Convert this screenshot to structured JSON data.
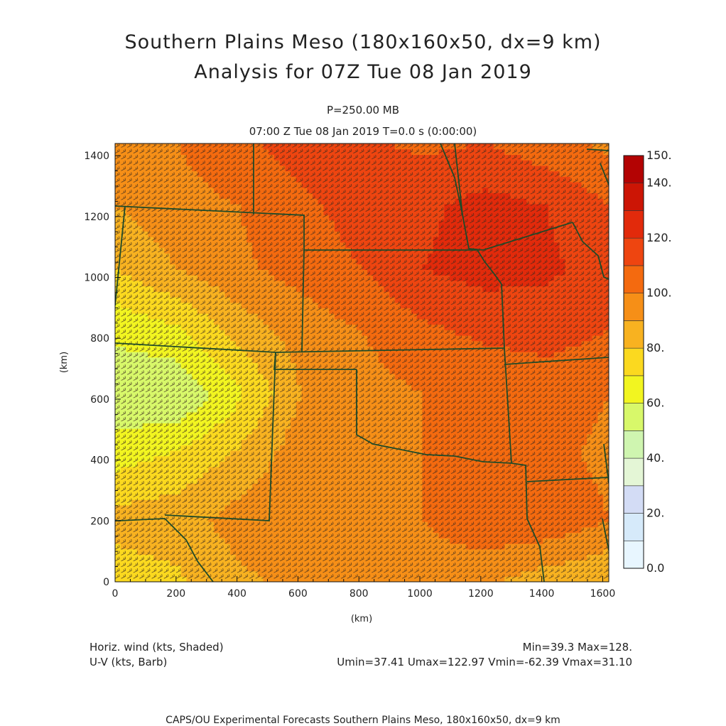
{
  "header": {
    "title": "Southern Plains Meso (180x160x50, dx=9 km)",
    "subtitle": "Analysis for 07Z Tue 08 Jan 2019",
    "level": "P=250.00 MB",
    "time": "07:00 Z Tue 08 Jan 2019    T=0.0 s (0:00:00)"
  },
  "footer": {
    "field1": "Horiz. wind (kts, Shaded)",
    "field2": "U-V (kts, Barb)",
    "minmax": "Min=39.3 Max=128.",
    "uvstats": "Umin=37.41 Umax=122.97 Vmin=-62.39 Vmax=31.10",
    "credit": "CAPS/OU Experimental Forecasts  Southern Plains Meso, 180x160x50, dx=9 km"
  },
  "chart_data": {
    "type": "heatmap",
    "xlabel": "(km)",
    "ylabel": "(km)",
    "xlim": [
      0,
      1620
    ],
    "ylim": [
      0,
      1440
    ],
    "x_ticks": [
      "0",
      "200",
      "400",
      "600",
      "800",
      "1000",
      "1200",
      "1400",
      "1600"
    ],
    "y_ticks": [
      "0",
      "200",
      "400",
      "600",
      "800",
      "1000",
      "1200",
      "1400"
    ],
    "colorbar": {
      "labels": [
        "0.0",
        "20.",
        "40.",
        "60.",
        "80.",
        "100.",
        "120.",
        "140.",
        "150."
      ],
      "bins": [
        {
          "from": 0,
          "to": 10,
          "color": "#e8f6ff"
        },
        {
          "from": 10,
          "to": 20,
          "color": "#d6eafa"
        },
        {
          "from": 20,
          "to": 30,
          "color": "#d3dcf5"
        },
        {
          "from": 30,
          "to": 40,
          "color": "#e4f6d6"
        },
        {
          "from": 40,
          "to": 50,
          "color": "#cff5b0"
        },
        {
          "from": 50,
          "to": 60,
          "color": "#d8f86a"
        },
        {
          "from": 60,
          "to": 70,
          "color": "#f2f520"
        },
        {
          "from": 70,
          "to": 80,
          "color": "#fbd91f"
        },
        {
          "from": 80,
          "to": 90,
          "color": "#f8b220"
        },
        {
          "from": 90,
          "to": 100,
          "color": "#f68f17"
        },
        {
          "from": 100,
          "to": 110,
          "color": "#f46a0f"
        },
        {
          "from": 110,
          "to": 120,
          "color": "#ee4510"
        },
        {
          "from": 120,
          "to": 130,
          "color": "#e22a0b"
        },
        {
          "from": 130,
          "to": 140,
          "color": "#cc1505"
        },
        {
          "from": 140,
          "to": 150,
          "color": "#b30303"
        }
      ]
    },
    "wind_speed_grid_kts": {
      "x_km": [
        0,
        203,
        405,
        608,
        810,
        1013,
        1215,
        1418,
        1620
      ],
      "y_km": [
        0,
        206,
        411,
        617,
        823,
        1029,
        1234,
        1440
      ],
      "values": [
        [
          74,
          78,
          88,
          92,
          94,
          94,
          92,
          84,
          80
        ],
        [
          84,
          86,
          94,
          100,
          98,
          100,
          108,
          108,
          100
        ],
        [
          66,
          72,
          82,
          96,
          100,
          100,
          104,
          102,
          98
        ],
        [
          52,
          50,
          68,
          90,
          96,
          100,
          102,
          104,
          100
        ],
        [
          62,
          68,
          84,
          94,
          100,
          108,
          112,
          114,
          110
        ],
        [
          80,
          90,
          98,
          104,
          110,
          120,
          124,
          122,
          116
        ],
        [
          90,
          96,
          100,
          108,
          114,
          118,
          124,
          120,
          110
        ],
        [
          96,
          100,
          108,
          114,
          112,
          108,
          110,
          104,
          98
        ]
      ]
    }
  }
}
